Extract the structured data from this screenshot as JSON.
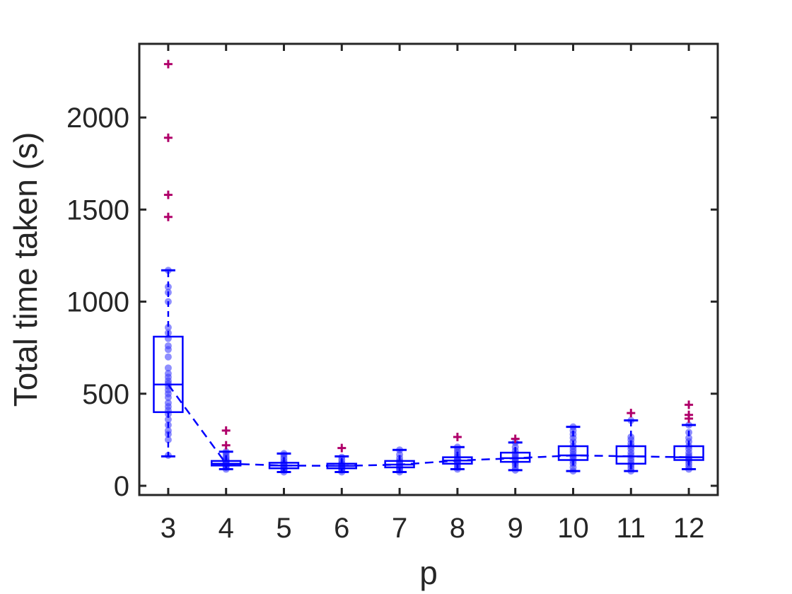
{
  "chart_data": {
    "type": "box",
    "title": "",
    "xlabel": "p",
    "ylabel": "Total time taken (s)",
    "categories": [
      "3",
      "4",
      "5",
      "6",
      "7",
      "8",
      "9",
      "10",
      "11",
      "12"
    ],
    "x_ticks": [
      "3",
      "4",
      "5",
      "6",
      "7",
      "8",
      "9",
      "10",
      "11",
      "12"
    ],
    "y_ticks": [
      "0",
      "500",
      "1000",
      "1500",
      "2000"
    ],
    "y_tick_values": [
      0,
      500,
      1000,
      1500,
      2000
    ],
    "ylim": [
      -50,
      2400
    ],
    "grid": false,
    "box_color": "#0000ff",
    "point_color": "#3333ff",
    "outlier_color": "#b0006a",
    "boxes": [
      {
        "p": 3,
        "q1": 400,
        "median": 550,
        "q3": 810,
        "whisker_low": 160,
        "whisker_high": 1170,
        "outliers": [
          1460,
          1580,
          1890,
          2290
        ]
      },
      {
        "p": 4,
        "q1": 110,
        "median": 120,
        "q3": 135,
        "whisker_low": 90,
        "whisker_high": 185,
        "outliers": [
          220,
          300
        ]
      },
      {
        "p": 5,
        "q1": 95,
        "median": 110,
        "q3": 125,
        "whisker_low": 75,
        "whisker_high": 175,
        "outliers": []
      },
      {
        "p": 6,
        "q1": 95,
        "median": 108,
        "q3": 120,
        "whisker_low": 75,
        "whisker_high": 160,
        "outliers": [
          205
        ]
      },
      {
        "p": 7,
        "q1": 100,
        "median": 115,
        "q3": 135,
        "whisker_low": 75,
        "whisker_high": 195,
        "outliers": []
      },
      {
        "p": 8,
        "q1": 120,
        "median": 137,
        "q3": 155,
        "whisker_low": 90,
        "whisker_high": 210,
        "outliers": [
          265
        ]
      },
      {
        "p": 9,
        "q1": 130,
        "median": 150,
        "q3": 180,
        "whisker_low": 85,
        "whisker_high": 235,
        "outliers": [
          255
        ]
      },
      {
        "p": 10,
        "q1": 140,
        "median": 165,
        "q3": 215,
        "whisker_low": 80,
        "whisker_high": 320,
        "outliers": []
      },
      {
        "p": 11,
        "q1": 120,
        "median": 160,
        "q3": 215,
        "whisker_low": 80,
        "whisker_high": 355,
        "outliers": [
          395
        ]
      },
      {
        "p": 12,
        "q1": 140,
        "median": 155,
        "q3": 215,
        "whisker_low": 90,
        "whisker_high": 330,
        "outliers": [
          365,
          385,
          440
        ]
      }
    ],
    "points": {
      "3": [
        165,
        250,
        280,
        300,
        330,
        360,
        390,
        410,
        430,
        450,
        480,
        500,
        520,
        540,
        555,
        570,
        590,
        610,
        640,
        700,
        740,
        760,
        800,
        830,
        860,
        1000,
        1050,
        1080,
        1170
      ],
      "4": [
        90,
        100,
        105,
        110,
        115,
        118,
        120,
        125,
        130,
        135,
        140,
        150,
        160,
        175,
        185
      ],
      "5": [
        75,
        85,
        90,
        95,
        100,
        105,
        110,
        115,
        120,
        125,
        135,
        150,
        165,
        175
      ],
      "6": [
        75,
        85,
        90,
        95,
        100,
        105,
        108,
        112,
        118,
        125,
        140,
        155
      ],
      "7": [
        75,
        85,
        95,
        100,
        105,
        112,
        118,
        125,
        135,
        150,
        170,
        195
      ],
      "8": [
        90,
        100,
        110,
        120,
        128,
        135,
        140,
        145,
        155,
        165,
        180,
        195,
        210
      ],
      "9": [
        85,
        100,
        115,
        125,
        135,
        145,
        155,
        165,
        175,
        190,
        210,
        235
      ],
      "10": [
        80,
        100,
        120,
        135,
        150,
        160,
        170,
        185,
        200,
        215,
        240,
        260,
        280,
        300,
        320
      ],
      "11": [
        80,
        95,
        110,
        120,
        135,
        150,
        165,
        180,
        200,
        215,
        230,
        250,
        265,
        355
      ],
      "12": [
        90,
        105,
        120,
        135,
        145,
        155,
        165,
        180,
        200,
        215,
        240,
        260,
        290,
        330
      ]
    }
  }
}
